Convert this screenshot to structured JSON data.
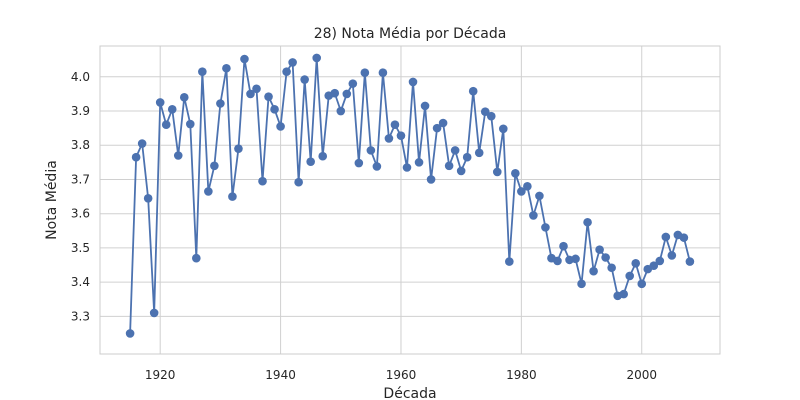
{
  "chart_data": {
    "type": "line",
    "title": "28) Nota Média por Década",
    "xlabel": "Década",
    "ylabel": "Nota Média",
    "xlim": [
      1910,
      2013
    ],
    "ylim": [
      3.19,
      4.09
    ],
    "xticks": [
      1920,
      1940,
      1960,
      1980,
      2000
    ],
    "yticks": [
      3.3,
      3.4,
      3.5,
      3.6,
      3.7,
      3.8,
      3.9,
      4.0
    ],
    "ytick_labels": [
      "3.3",
      "3.4",
      "3.5",
      "3.6",
      "3.7",
      "3.8",
      "3.9",
      "4.0"
    ],
    "grid": true,
    "line_color": "#4c72b0",
    "series": [
      {
        "x": [
          1915,
          1916,
          1917,
          1918,
          1919,
          1920,
          1921,
          1922,
          1923,
          1924,
          1925,
          1926,
          1927,
          1928,
          1929,
          1930,
          1931,
          1932,
          1933,
          1934,
          1935,
          1936,
          1937,
          1938,
          1939,
          1940,
          1941,
          1942,
          1943,
          1944,
          1945,
          1946,
          1947,
          1948,
          1949,
          1950,
          1951,
          1952,
          1953,
          1954,
          1955,
          1956,
          1957,
          1958,
          1959,
          1960,
          1961,
          1962,
          1963,
          1964,
          1965,
          1966,
          1967,
          1968,
          1969,
          1970,
          1971,
          1972,
          1973,
          1974,
          1975,
          1976,
          1977,
          1978,
          1979,
          1980,
          1981,
          1982,
          1983,
          1984,
          1985,
          1986,
          1987,
          1988,
          1989,
          1990,
          1991,
          1992,
          1993,
          1994,
          1995,
          1996,
          1997,
          1998,
          1999,
          2000,
          2001,
          2002,
          2003,
          2004,
          2005,
          2006,
          2007,
          2008
        ],
        "y": [
          3.25,
          3.765,
          3.805,
          3.645,
          3.31,
          3.925,
          3.86,
          3.905,
          3.77,
          3.94,
          3.862,
          3.47,
          4.015,
          3.665,
          3.74,
          3.922,
          4.025,
          3.65,
          3.79,
          4.052,
          3.95,
          3.965,
          3.695,
          3.942,
          3.905,
          3.855,
          4.015,
          4.042,
          3.692,
          3.992,
          3.752,
          4.055,
          3.768,
          3.945,
          3.952,
          3.9,
          3.95,
          3.98,
          3.748,
          4.012,
          3.785,
          3.738,
          4.012,
          3.82,
          3.86,
          3.828,
          3.735,
          3.985,
          3.75,
          3.915,
          3.7,
          3.85,
          3.865,
          3.74,
          3.785,
          3.725,
          3.765,
          3.958,
          3.778,
          3.898,
          3.885,
          3.722,
          3.848,
          3.46,
          3.718,
          3.665,
          3.68,
          3.595,
          3.652,
          3.56,
          3.47,
          3.462,
          3.505,
          3.465,
          3.468,
          3.395,
          3.575,
          3.432,
          3.495,
          3.472,
          3.442,
          3.36,
          3.365,
          3.418,
          3.455,
          3.395,
          3.438,
          3.448,
          3.462,
          3.532,
          3.478,
          3.538,
          3.53,
          3.46
        ]
      }
    ]
  }
}
